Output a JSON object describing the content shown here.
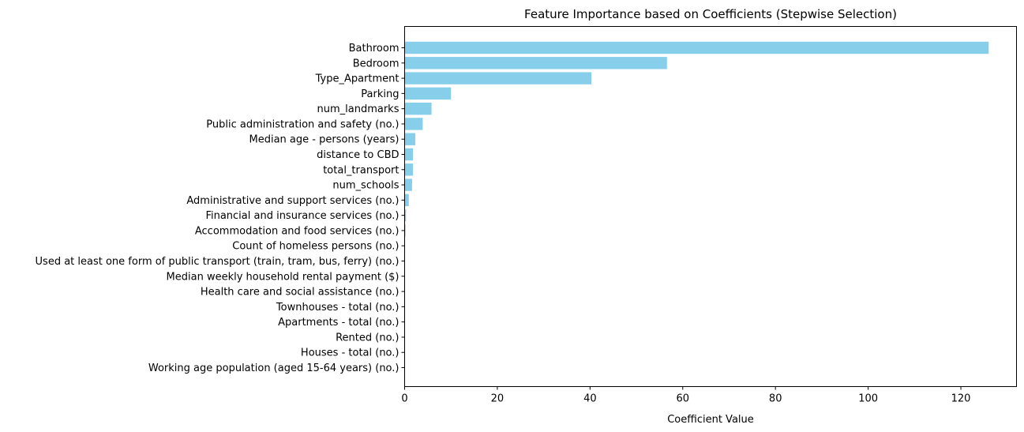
{
  "chart_data": {
    "type": "bar",
    "orientation": "horizontal",
    "title": "Feature Importance based on Coefficients (Stepwise Selection)",
    "xlabel": "Coefficient Value",
    "ylabel": "",
    "xlim": [
      0,
      132
    ],
    "xticks": [
      0,
      20,
      40,
      60,
      80,
      100,
      120
    ],
    "bar_color": "#87ceeb",
    "grid": false,
    "categories": [
      "Bathroom",
      "Bedroom",
      "Type_Apartment",
      "Parking",
      "num_landmarks",
      "Public administration and safety (no.)",
      "Median age - persons (years)",
      "distance to CBD",
      "total_transport",
      "num_schools",
      "Administrative and support services (no.)",
      "Financial and insurance services (no.)",
      "Accommodation and food services (no.)",
      "Count of homeless persons (no.)",
      "Used at least one form of public transport (train, tram, bus, ferry) (no.)",
      "Median weekly household rental payment ($)",
      "Health care and social assistance (no.)",
      "Townhouses - total (no.)",
      "Apartments - total (no.)",
      "Rented (no.)",
      "Houses - total (no.)",
      "Working age population (aged 15-64 years) (no.)"
    ],
    "values": [
      126.0,
      56.6,
      40.3,
      10.0,
      5.8,
      3.9,
      2.3,
      1.8,
      1.8,
      1.6,
      0.9,
      0.3,
      0.2,
      0.1,
      0.05,
      0.05,
      0.04,
      0.03,
      0.03,
      0.02,
      0.02,
      0.01
    ]
  }
}
